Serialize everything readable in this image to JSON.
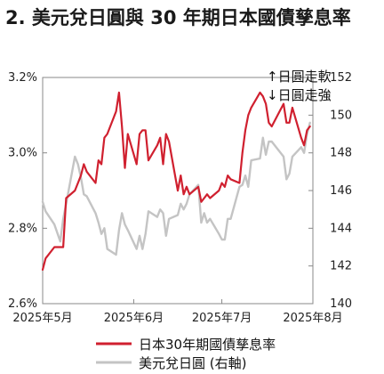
{
  "chart_data": {
    "type": "line",
    "title": "2. 美元兌日圓與 30 年期日本國債孳息率",
    "x_ticks": [
      "2025年5月",
      "2025年6月",
      "2025年7月",
      "2025年8月"
    ],
    "y_left": {
      "ticks": [
        "2.6%",
        "2.8%",
        "3.0%",
        "3.2%"
      ],
      "values": [
        2.6,
        2.8,
        3.0,
        3.2
      ],
      "ylim": [
        2.6,
        3.2
      ]
    },
    "y_right": {
      "ticks": [
        "140",
        "142",
        "144",
        "146",
        "148",
        "150",
        "152"
      ],
      "values": [
        140,
        142,
        144,
        146,
        148,
        150,
        152
      ],
      "ylim": [
        140,
        152
      ]
    },
    "annotations": {
      "up": "↑日圓走軟",
      "down": "↓日圓走強"
    },
    "series": [
      {
        "name": "日本30年期國債孳息率",
        "axis": "left",
        "color": "#d0202f",
        "x": [
          "2025-05-01",
          "2025-05-02",
          "2025-05-05",
          "2025-05-07",
          "2025-05-08",
          "2025-05-09",
          "2025-05-12",
          "2025-05-13",
          "2025-05-14",
          "2025-05-15",
          "2025-05-16",
          "2025-05-19",
          "2025-05-20",
          "2025-05-21",
          "2025-05-22",
          "2025-05-23",
          "2025-05-26",
          "2025-05-27",
          "2025-05-28",
          "2025-05-29",
          "2025-05-30",
          "2025-06-02",
          "2025-06-03",
          "2025-06-04",
          "2025-06-05",
          "2025-06-06",
          "2025-06-09",
          "2025-06-10",
          "2025-06-11",
          "2025-06-12",
          "2025-06-13",
          "2025-06-16",
          "2025-06-17",
          "2025-06-18",
          "2025-06-19",
          "2025-06-20",
          "2025-06-23",
          "2025-06-24",
          "2025-06-25",
          "2025-06-26",
          "2025-06-27",
          "2025-06-30",
          "2025-07-01",
          "2025-07-02",
          "2025-07-03",
          "2025-07-04",
          "2025-07-07",
          "2025-07-08",
          "2025-07-09",
          "2025-07-10",
          "2025-07-11",
          "2025-07-14",
          "2025-07-15",
          "2025-07-16",
          "2025-07-17",
          "2025-07-18",
          "2025-07-22",
          "2025-07-23",
          "2025-07-24",
          "2025-07-25",
          "2025-07-28",
          "2025-07-29",
          "2025-07-30",
          "2025-07-31"
        ],
        "values": [
          2.69,
          2.72,
          2.75,
          2.75,
          2.75,
          2.88,
          2.9,
          2.92,
          2.94,
          2.97,
          2.95,
          2.92,
          2.98,
          2.97,
          3.04,
          3.05,
          3.11,
          3.16,
          3.07,
          2.96,
          3.05,
          2.97,
          3.05,
          3.06,
          3.06,
          2.98,
          3.02,
          3.04,
          2.97,
          3.05,
          3.03,
          2.9,
          2.94,
          2.89,
          2.91,
          2.89,
          2.91,
          2.87,
          2.88,
          2.89,
          2.88,
          2.9,
          2.92,
          2.91,
          2.94,
          2.93,
          2.92,
          3.0,
          3.06,
          3.1,
          3.12,
          3.16,
          3.15,
          3.13,
          3.08,
          3.07,
          3.13,
          3.08,
          3.08,
          3.12,
          3.04,
          3.02,
          3.06,
          3.07
        ]
      },
      {
        "name": "美元兌日圓 (右軸)",
        "axis": "right",
        "color": "#c4c4c4",
        "x": [
          "2025-05-01",
          "2025-05-02",
          "2025-05-05",
          "2025-05-07",
          "2025-05-08",
          "2025-05-09",
          "2025-05-12",
          "2025-05-13",
          "2025-05-14",
          "2025-05-15",
          "2025-05-16",
          "2025-05-19",
          "2025-05-20",
          "2025-05-21",
          "2025-05-22",
          "2025-05-23",
          "2025-05-26",
          "2025-05-27",
          "2025-05-28",
          "2025-05-29",
          "2025-05-30",
          "2025-06-02",
          "2025-06-03",
          "2025-06-04",
          "2025-06-05",
          "2025-06-06",
          "2025-06-09",
          "2025-06-10",
          "2025-06-11",
          "2025-06-12",
          "2025-06-13",
          "2025-06-16",
          "2025-06-17",
          "2025-06-18",
          "2025-06-19",
          "2025-06-20",
          "2025-06-23",
          "2025-06-24",
          "2025-06-25",
          "2025-06-26",
          "2025-06-27",
          "2025-06-30",
          "2025-07-01",
          "2025-07-02",
          "2025-07-03",
          "2025-07-04",
          "2025-07-07",
          "2025-07-08",
          "2025-07-09",
          "2025-07-10",
          "2025-07-11",
          "2025-07-14",
          "2025-07-15",
          "2025-07-16",
          "2025-07-17",
          "2025-07-18",
          "2025-07-22",
          "2025-07-23",
          "2025-07-24",
          "2025-07-25",
          "2025-07-28",
          "2025-07-29",
          "2025-07-30",
          "2025-07-31"
        ],
        "values": [
          145.4,
          144.9,
          144.2,
          143.3,
          144.5,
          145.3,
          147.8,
          147.4,
          146.7,
          145.8,
          145.7,
          144.8,
          144.3,
          143.7,
          144.0,
          142.9,
          142.6,
          143.9,
          144.8,
          144.2,
          143.9,
          142.9,
          143.6,
          142.9,
          143.7,
          144.9,
          144.6,
          145.0,
          144.8,
          143.6,
          144.5,
          144.7,
          145.3,
          145.0,
          145.3,
          145.8,
          146.3,
          144.3,
          144.8,
          144.3,
          144.5,
          143.7,
          143.4,
          143.4,
          144.5,
          144.5,
          146.2,
          146.3,
          146.8,
          146.2,
          147.6,
          147.7,
          148.8,
          147.9,
          148.6,
          148.6,
          147.8,
          146.6,
          146.9,
          147.8,
          148.3,
          148.0,
          149.0,
          149.6
        ]
      }
    ],
    "legend_placement": "bottom",
    "grid": false
  }
}
